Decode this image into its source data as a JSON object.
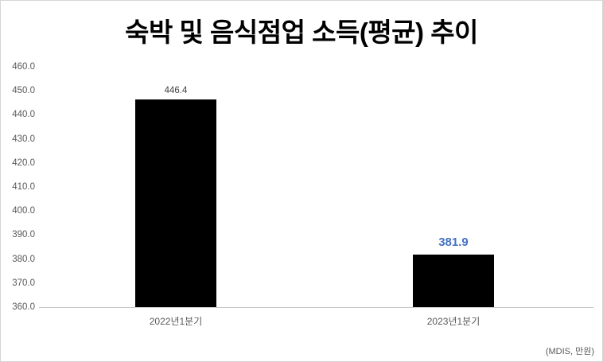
{
  "chart_data": {
    "type": "bar",
    "title": "숙박 및 음식점업 소득(평균) 추이",
    "categories": [
      "2022년1분기",
      "2023년1분기"
    ],
    "values": [
      446.4,
      381.9
    ],
    "value_labels": [
      "446.4",
      "381.9"
    ],
    "value_label_colors": [
      "#404040",
      "#4472c4"
    ],
    "value_label_bold": [
      false,
      true
    ],
    "ylim": [
      360,
      460
    ],
    "ytick_interval": 10,
    "yticks": [
      "460.0",
      "450.0",
      "440.0",
      "430.0",
      "420.0",
      "410.0",
      "400.0",
      "390.0",
      "380.0",
      "370.0",
      "360.0"
    ],
    "bar_color": "#000000",
    "grid": false,
    "legend": "none",
    "source_note": "(MDIS, 만원)"
  }
}
